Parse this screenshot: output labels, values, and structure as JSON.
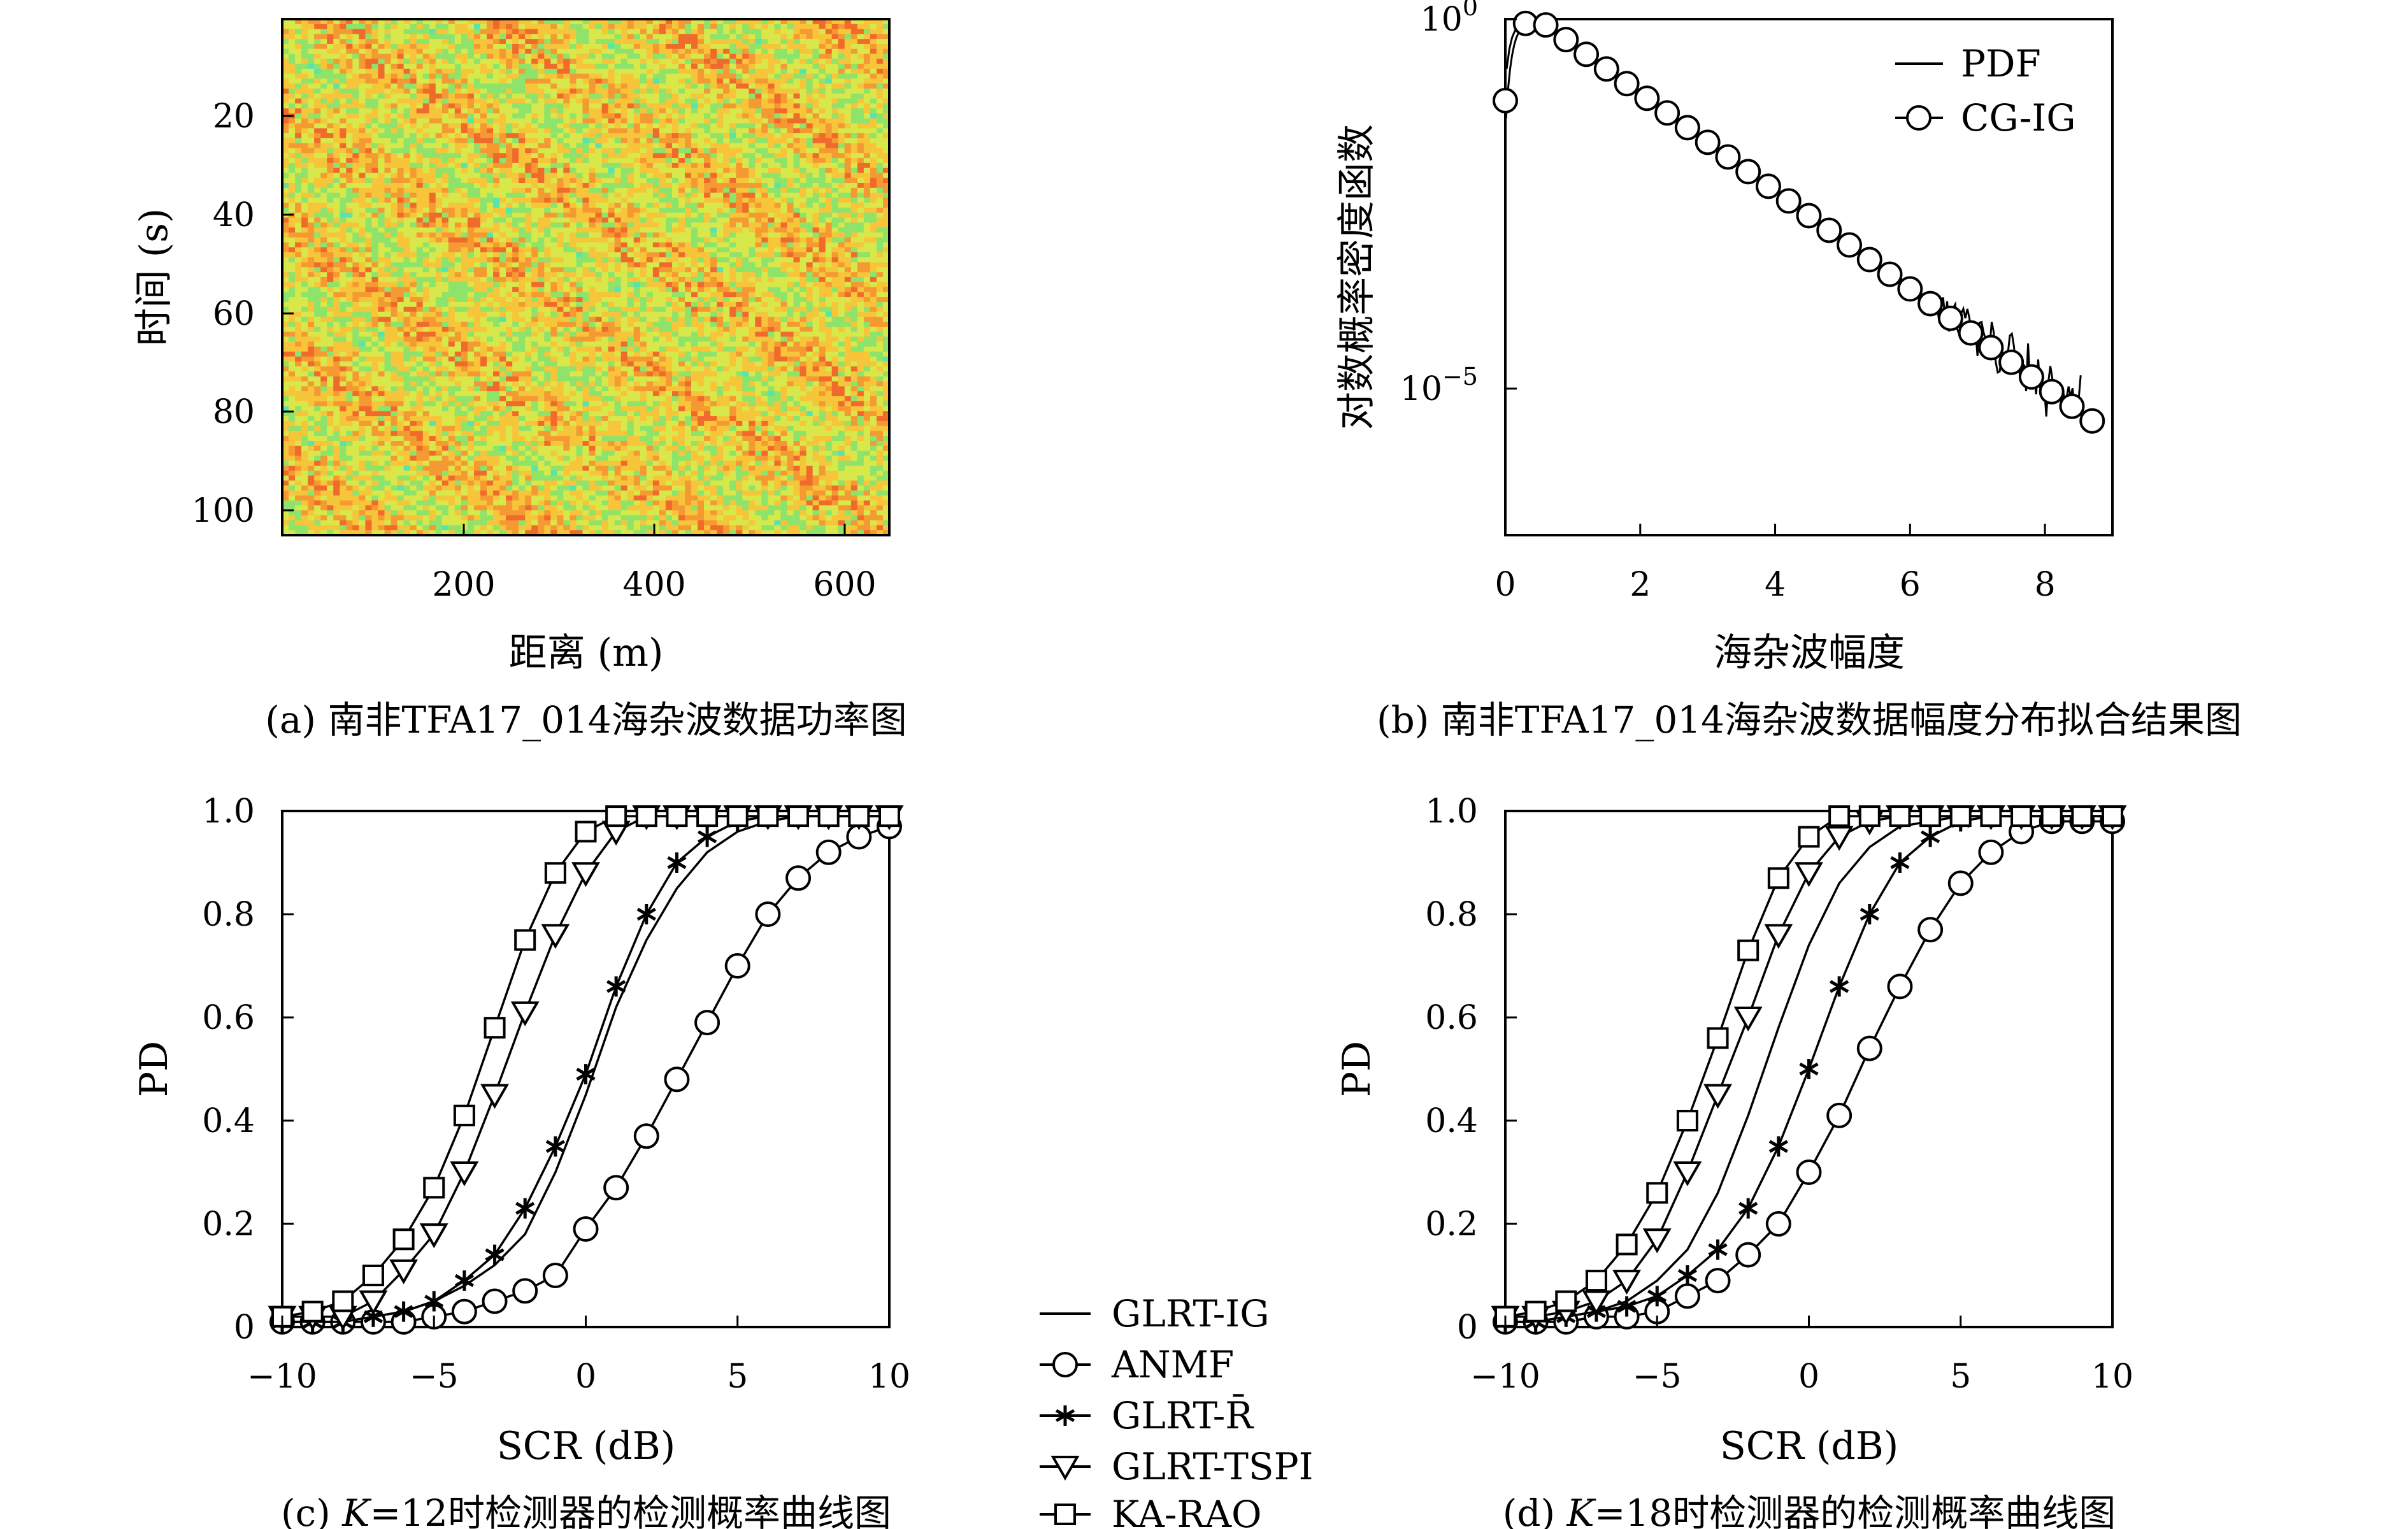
{
  "chart_data": [
    {
      "id": "a",
      "type": "heatmap",
      "caption": "(a) 南非TFA17_014海杂波数据功率图",
      "xlabel": "距离 (m)",
      "ylabel": "时间 (s)",
      "xticks": [
        "200",
        "400",
        "600"
      ],
      "yticks": [
        "20",
        "40",
        "60",
        "80",
        "100"
      ],
      "colormap": [
        "#59e3ad",
        "#8ee36a",
        "#d8e84a",
        "#f7c53a",
        "#f59a32",
        "#f06a2c"
      ]
    },
    {
      "id": "b",
      "type": "line",
      "caption": "(b) 南非TFA17_014海杂波数据幅度分布拟合结果图",
      "xlabel": "海杂波幅度",
      "ylabel": "对数概率密度函数",
      "xticks": [
        "0",
        "2",
        "4",
        "6",
        "8"
      ],
      "yticks": [
        {
          "base": "10",
          "exp": "0"
        },
        {
          "base": "10",
          "exp": "−5"
        }
      ],
      "legend": [
        {
          "name": "PDF",
          "marker": "none"
        },
        {
          "name": "CG-IG",
          "marker": "circle"
        }
      ]
    },
    {
      "id": "c",
      "type": "line",
      "caption_prefix": "(c) ",
      "caption_var": "K",
      "caption_rest": "=12时检测器的检测概率曲线图",
      "xlabel": "SCR (dB)",
      "ylabel": "PD",
      "xlim": [
        -10,
        10
      ],
      "ylim": [
        0,
        1
      ],
      "xticks": [
        "−10",
        "−5",
        "0",
        "5",
        "10"
      ],
      "yticks": [
        "0",
        "0.2",
        "0.4",
        "0.6",
        "0.8",
        "1.0"
      ],
      "x": [
        -10,
        -9,
        -8,
        -7,
        -6,
        -5,
        -4,
        -3,
        -2,
        -1,
        0,
        1,
        2,
        3,
        4,
        5,
        6,
        7,
        8,
        9,
        10
      ],
      "series": [
        {
          "name": "GLRT-IG",
          "marker": "none",
          "values": [
            0.01,
            0.01,
            0.01,
            0.02,
            0.03,
            0.05,
            0.08,
            0.12,
            0.18,
            0.3,
            0.45,
            0.62,
            0.75,
            0.85,
            0.92,
            0.96,
            0.98,
            0.99,
            0.99,
            0.99,
            0.99
          ]
        },
        {
          "name": "ANMF",
          "marker": "circle",
          "values": [
            0.01,
            0.01,
            0.01,
            0.01,
            0.01,
            0.02,
            0.03,
            0.05,
            0.07,
            0.1,
            0.19,
            0.27,
            0.37,
            0.48,
            0.59,
            0.7,
            0.8,
            0.87,
            0.92,
            0.95,
            0.97
          ]
        },
        {
          "name": "GLRT-R̄",
          "marker": "asterisk",
          "values": [
            0.01,
            0.01,
            0.01,
            0.02,
            0.03,
            0.05,
            0.09,
            0.14,
            0.23,
            0.35,
            0.49,
            0.66,
            0.8,
            0.9,
            0.95,
            0.98,
            0.99,
            0.99,
            0.99,
            0.99,
            0.99
          ]
        },
        {
          "name": "GLRT-TSPI",
          "marker": "triangle",
          "values": [
            0.02,
            0.02,
            0.02,
            0.05,
            0.11,
            0.18,
            0.3,
            0.45,
            0.61,
            0.76,
            0.88,
            0.96,
            0.99,
            0.99,
            0.99,
            0.99,
            0.99,
            0.99,
            0.99,
            0.99,
            0.99
          ]
        },
        {
          "name": "KA-RAO",
          "marker": "square",
          "values": [
            0.02,
            0.03,
            0.05,
            0.1,
            0.17,
            0.27,
            0.41,
            0.58,
            0.75,
            0.88,
            0.96,
            0.99,
            0.99,
            0.99,
            0.99,
            0.99,
            0.99,
            0.99,
            0.99,
            0.99,
            0.99
          ]
        }
      ]
    },
    {
      "id": "d",
      "type": "line",
      "caption_prefix": "(d) ",
      "caption_var": "K",
      "caption_rest": "=18时检测器的检测概率曲线图",
      "xlabel": "SCR (dB)",
      "ylabel": "PD",
      "xlim": [
        -10,
        10
      ],
      "ylim": [
        0,
        1
      ],
      "xticks": [
        "−10",
        "−5",
        "0",
        "5",
        "10"
      ],
      "yticks": [
        "0",
        "0.2",
        "0.4",
        "0.6",
        "0.8",
        "1.0"
      ],
      "x": [
        -10,
        -9,
        -8,
        -7,
        -6,
        -5,
        -4,
        -3,
        -2,
        -1,
        0,
        1,
        2,
        3,
        4,
        5,
        6,
        7,
        8,
        9,
        10
      ],
      "series": [
        {
          "name": "GLRT-IG",
          "marker": "none",
          "values": [
            0.01,
            0.01,
            0.02,
            0.03,
            0.05,
            0.09,
            0.15,
            0.26,
            0.41,
            0.58,
            0.74,
            0.86,
            0.93,
            0.97,
            0.98,
            0.99,
            0.99,
            0.99,
            0.99,
            0.99,
            0.99
          ]
        },
        {
          "name": "ANMF",
          "marker": "circle",
          "values": [
            0.01,
            0.01,
            0.01,
            0.02,
            0.02,
            0.03,
            0.06,
            0.09,
            0.14,
            0.2,
            0.3,
            0.41,
            0.54,
            0.66,
            0.77,
            0.86,
            0.92,
            0.96,
            0.98,
            0.98,
            0.98
          ]
        },
        {
          "name": "GLRT-R̄",
          "marker": "asterisk",
          "values": [
            0.01,
            0.01,
            0.02,
            0.03,
            0.04,
            0.06,
            0.1,
            0.15,
            0.23,
            0.35,
            0.5,
            0.66,
            0.8,
            0.9,
            0.95,
            0.98,
            0.99,
            0.99,
            0.99,
            0.99,
            0.99
          ]
        },
        {
          "name": "GLRT-TSPI",
          "marker": "triangle",
          "values": [
            0.02,
            0.02,
            0.03,
            0.05,
            0.09,
            0.17,
            0.3,
            0.45,
            0.6,
            0.76,
            0.88,
            0.95,
            0.98,
            0.99,
            0.99,
            0.99,
            0.99,
            0.99,
            0.99,
            0.99,
            0.99
          ]
        },
        {
          "name": "KA-RAO",
          "marker": "square",
          "values": [
            0.02,
            0.03,
            0.05,
            0.09,
            0.16,
            0.26,
            0.4,
            0.56,
            0.73,
            0.87,
            0.95,
            0.99,
            0.99,
            0.99,
            0.99,
            0.99,
            0.99,
            0.99,
            0.99,
            0.99,
            0.99
          ]
        }
      ]
    }
  ]
}
